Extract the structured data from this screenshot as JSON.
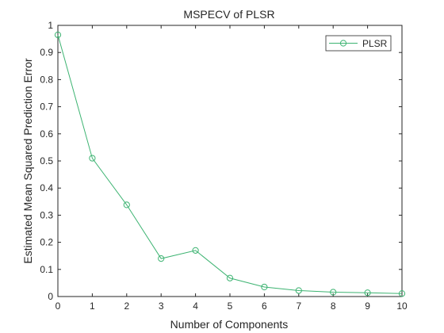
{
  "chart_data": {
    "type": "line",
    "title": "MSPECV of PLSR",
    "xlabel": "Number of Components",
    "ylabel": "Estimated Mean Squared Prediction Error",
    "xlim": [
      0,
      10
    ],
    "ylim": [
      0,
      1
    ],
    "x": [
      0,
      1,
      2,
      3,
      4,
      5,
      6,
      7,
      8,
      9,
      10
    ],
    "xticks": [
      "0",
      "1",
      "2",
      "3",
      "4",
      "5",
      "6",
      "7",
      "8",
      "9",
      "10"
    ],
    "yticks": [
      "0",
      "0.1",
      "0.2",
      "0.3",
      "0.4",
      "0.5",
      "0.6",
      "0.7",
      "0.8",
      "0.9",
      "1"
    ],
    "series": [
      {
        "name": "PLSR",
        "marker": "circle",
        "color": "#3cb371",
        "values": [
          0.965,
          0.51,
          0.338,
          0.14,
          0.17,
          0.068,
          0.035,
          0.022,
          0.016,
          0.014,
          0.011
        ]
      }
    ],
    "legend_position": "top-right",
    "grid": false
  }
}
